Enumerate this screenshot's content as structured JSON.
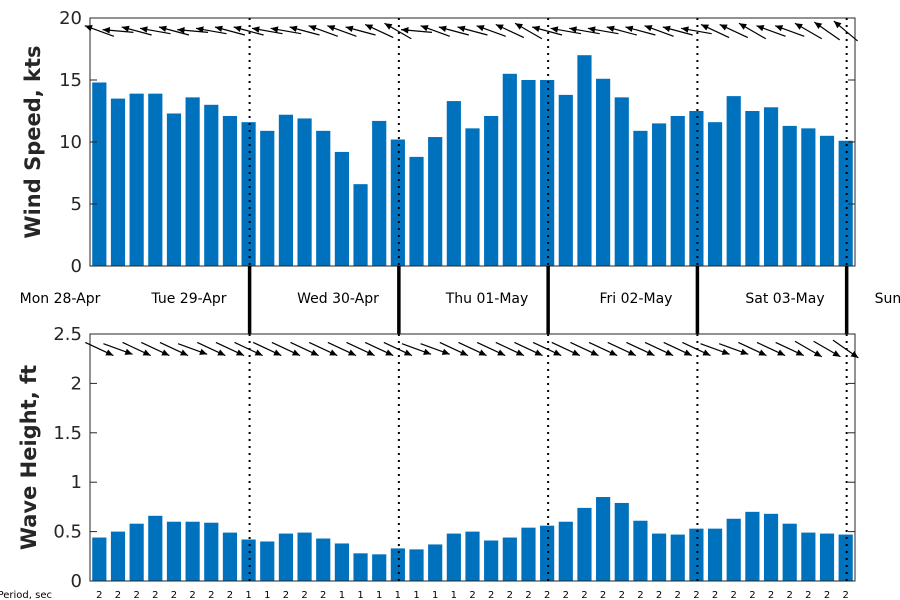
{
  "chart_data": [
    {
      "type": "bar",
      "ylabel": "Wind Speed, kts",
      "ylim": [
        0,
        20
      ],
      "yticks": [
        0,
        5,
        10,
        15,
        20
      ],
      "values": [
        14.8,
        13.5,
        13.9,
        13.9,
        12.3,
        13.6,
        13.0,
        12.1,
        11.6,
        10.9,
        12.2,
        11.9,
        10.9,
        9.2,
        6.6,
        11.7,
        10.2,
        8.8,
        10.4,
        13.3,
        11.1,
        12.1,
        15.5,
        15.0,
        15.0,
        13.8,
        17.0,
        15.1,
        13.6,
        10.9,
        11.5,
        12.1,
        12.5,
        11.6,
        13.7,
        12.5,
        12.8,
        11.3,
        11.1,
        10.5,
        10.1
      ],
      "arrow_angles_deg": [
        160,
        175,
        165,
        170,
        165,
        175,
        170,
        165,
        165,
        170,
        170,
        165,
        160,
        160,
        165,
        155,
        150,
        175,
        160,
        165,
        165,
        160,
        155,
        150,
        165,
        170,
        170,
        170,
        165,
        165,
        160,
        165,
        170,
        155,
        155,
        150,
        160,
        160,
        150,
        145,
        140
      ],
      "bar_color": "#0072bd",
      "grid": false
    },
    {
      "type": "bar",
      "ylabel": "Wave Height, ft",
      "ylim": [
        0,
        2.5
      ],
      "yticks": [
        "0",
        "0.5",
        "1",
        "1.5",
        "2",
        "2.5"
      ],
      "values": [
        0.44,
        0.5,
        0.58,
        0.66,
        0.6,
        0.6,
        0.59,
        0.49,
        0.42,
        0.4,
        0.48,
        0.49,
        0.43,
        0.38,
        0.28,
        0.27,
        0.33,
        0.32,
        0.37,
        0.48,
        0.5,
        0.41,
        0.44,
        0.54,
        0.56,
        0.6,
        0.74,
        0.85,
        0.79,
        0.61,
        0.48,
        0.47,
        0.53,
        0.53,
        0.63,
        0.7,
        0.68,
        0.58,
        0.49,
        0.48,
        0.47
      ],
      "arrow_angles_deg": [
        -25,
        -20,
        -25,
        -25,
        -25,
        -20,
        -25,
        -25,
        -25,
        -25,
        -25,
        -25,
        -25,
        -25,
        -25,
        -25,
        -25,
        -20,
        -20,
        -25,
        -25,
        -25,
        -25,
        -25,
        -25,
        -25,
        -25,
        -25,
        -25,
        -25,
        -25,
        -25,
        -25,
        -20,
        -20,
        -25,
        -25,
        -25,
        -30,
        -30,
        -35
      ],
      "bar_color": "#0072bd",
      "grid": false
    }
  ],
  "days": [
    "Mon 28-Apr",
    "Tue 29-Apr",
    "Wed 30-Apr",
    "Thu 01-May",
    "Fri 02-May",
    "Sat 03-May",
    "Sun"
  ],
  "period_label": "Period, sec",
  "periods": [
    "2",
    "2",
    "2",
    "2",
    "2",
    "2",
    "2",
    "2",
    "1",
    "1",
    "2",
    "2",
    "2",
    "1",
    "1",
    "1",
    "1",
    "1",
    "1",
    "1",
    "2",
    "2",
    "2",
    "2",
    "2",
    "2",
    "2",
    "2",
    "2",
    "2",
    "2",
    "2",
    "2",
    "2",
    "2",
    "2",
    "2",
    "2",
    "2",
    "2",
    "2"
  ]
}
